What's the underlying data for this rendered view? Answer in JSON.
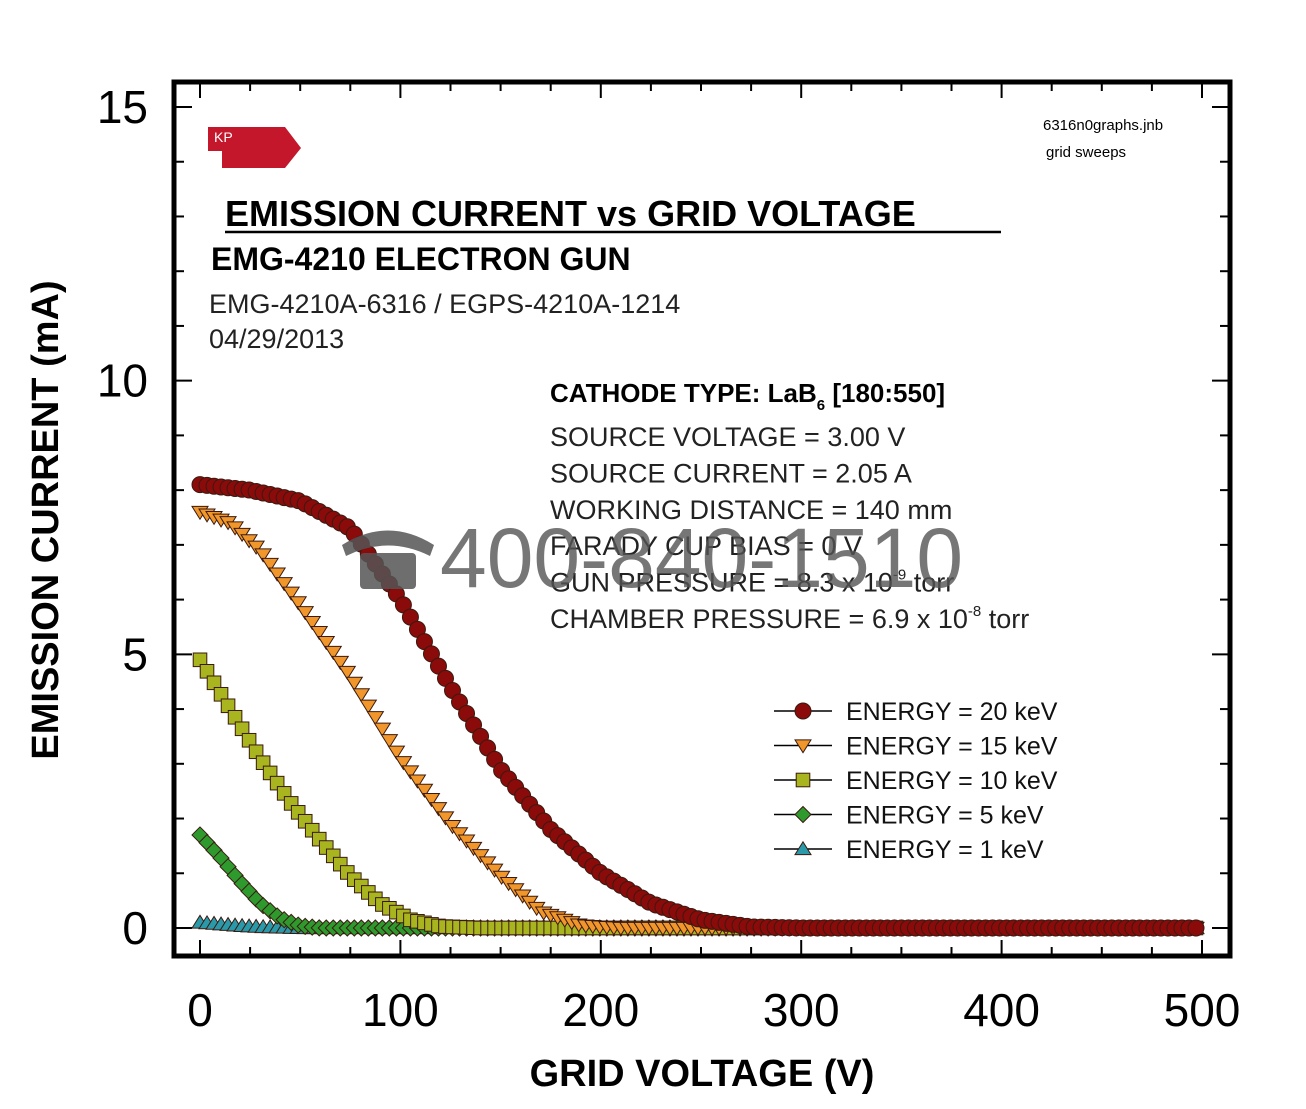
{
  "chart_data": {
    "type": "scatter",
    "title": "EMISSION CURRENT vs GRID VOLTAGE",
    "subtitle": "EMG-4210 ELECTRON GUN",
    "model_line": "EMG-4210A-6316 / EGPS-4210A-1214",
    "date": "04/29/2013",
    "file_name": "6316n0graphs.jnb",
    "file_note": "grid sweeps",
    "logo_text": "KP",
    "xlabel": "GRID VOLTAGE (V)",
    "ylabel": "EMISSION CURRENT (mA)",
    "xlim": [
      0,
      500
    ],
    "ylim": [
      0,
      15
    ],
    "x_ticks": [
      "0",
      "100",
      "200",
      "300",
      "400",
      "500"
    ],
    "y_ticks": [
      "0",
      "5",
      "10",
      "15"
    ],
    "grid": false,
    "legend_position": "right",
    "conditions": {
      "cathode_prefix": "CATHODE TYPE:  LaB",
      "cathode_sub": "6",
      "cathode_suffix": " [180:550]",
      "lines": [
        {
          "text": "SOURCE VOLTAGE = 3.00 V"
        },
        {
          "text": "SOURCE CURRENT = 2.05 A"
        },
        {
          "text": "WORKING DISTANCE = 140 mm"
        },
        {
          "text": "FARADY CUP BIAS = 0 V"
        },
        {
          "text": "GUN PRESSURE = 8.3 x 10",
          "sup": "-9",
          "after": " torr"
        },
        {
          "text": "CHAMBER PRESSURE = 6.9 x 10",
          "sup": "-8",
          "after": " torr"
        }
      ]
    },
    "watermark": "400-840-1510",
    "series": [
      {
        "name": "ENERGY = 20 keV",
        "marker": "circle",
        "color": "#8b0a0a",
        "points": [
          [
            0,
            8.1
          ],
          [
            25,
            8.0
          ],
          [
            50,
            7.8
          ],
          [
            75,
            7.3
          ],
          [
            100,
            6.0
          ],
          [
            125,
            4.4
          ],
          [
            150,
            2.9
          ],
          [
            175,
            1.8
          ],
          [
            200,
            1.0
          ],
          [
            225,
            0.45
          ],
          [
            250,
            0.15
          ],
          [
            275,
            0.02
          ],
          [
            300,
            0
          ],
          [
            350,
            0
          ],
          [
            400,
            0
          ],
          [
            450,
            0
          ],
          [
            500,
            0
          ]
        ]
      },
      {
        "name": "ENERGY = 15 keV",
        "marker": "triangle-down",
        "color": "#f0962a",
        "points": [
          [
            0,
            7.6
          ],
          [
            15,
            7.4
          ],
          [
            30,
            6.9
          ],
          [
            50,
            5.9
          ],
          [
            75,
            4.6
          ],
          [
            100,
            3.1
          ],
          [
            125,
            1.9
          ],
          [
            150,
            0.95
          ],
          [
            170,
            0.3
          ],
          [
            190,
            0.05
          ],
          [
            210,
            0
          ],
          [
            300,
            0
          ],
          [
            400,
            0
          ],
          [
            500,
            0
          ]
        ]
      },
      {
        "name": "ENERGY = 10 keV",
        "marker": "square",
        "color": "#a8b51e",
        "points": [
          [
            0,
            4.9
          ],
          [
            15,
            4.0
          ],
          [
            30,
            3.1
          ],
          [
            45,
            2.3
          ],
          [
            60,
            1.6
          ],
          [
            75,
            0.95
          ],
          [
            90,
            0.45
          ],
          [
            105,
            0.15
          ],
          [
            120,
            0.03
          ],
          [
            140,
            0
          ],
          [
            200,
            0
          ],
          [
            300,
            0
          ],
          [
            400,
            0
          ],
          [
            500,
            0
          ]
        ]
      },
      {
        "name": "ENERGY =   5 keV",
        "marker": "diamond",
        "color": "#2e9a2e",
        "points": [
          [
            0,
            1.7
          ],
          [
            10,
            1.3
          ],
          [
            20,
            0.85
          ],
          [
            30,
            0.45
          ],
          [
            40,
            0.18
          ],
          [
            50,
            0.04
          ],
          [
            60,
            0
          ],
          [
            100,
            0
          ],
          [
            200,
            0
          ],
          [
            300,
            0
          ],
          [
            400,
            0
          ],
          [
            500,
            0
          ]
        ]
      },
      {
        "name": "ENERGY =   1 keV",
        "marker": "triangle-up",
        "color": "#2a9aaa",
        "points": [
          [
            0,
            0.1
          ],
          [
            10,
            0.07
          ],
          [
            20,
            0.04
          ],
          [
            30,
            0.02
          ],
          [
            50,
            0
          ],
          [
            100,
            0
          ],
          [
            200,
            0
          ],
          [
            300,
            0
          ],
          [
            400,
            0
          ],
          [
            500,
            0
          ]
        ]
      }
    ]
  }
}
